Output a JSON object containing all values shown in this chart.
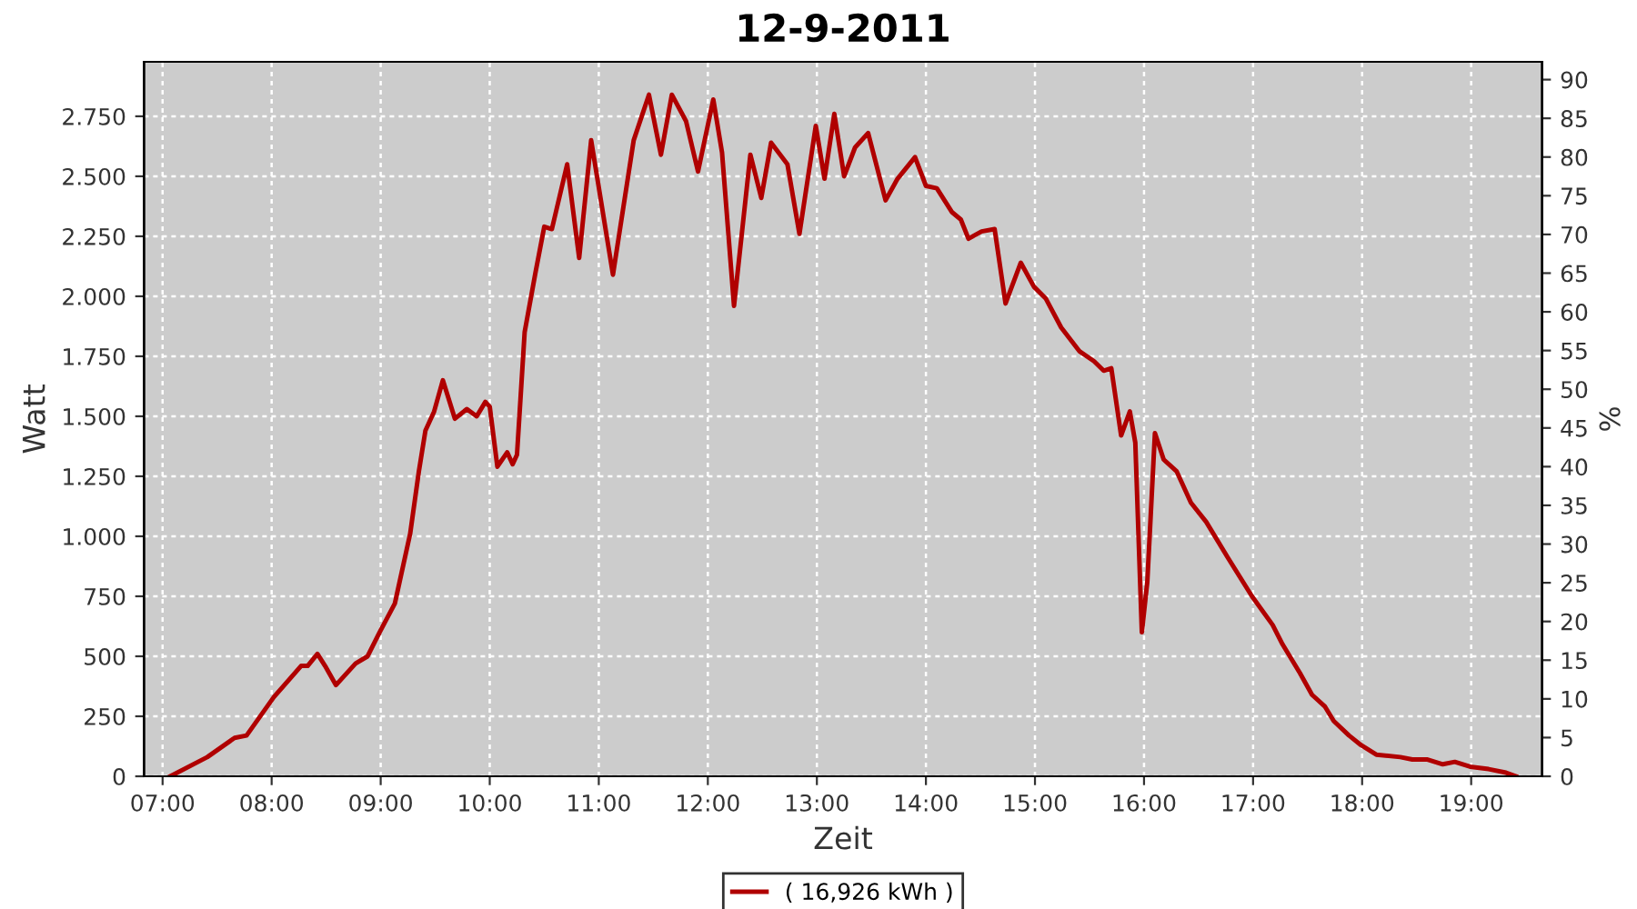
{
  "chart_data": {
    "type": "line",
    "title": "12-9-2011",
    "xlabel": "Zeit",
    "ylabel": "Watt",
    "y2label": "%",
    "series": [
      {
        "name": "( 16,926 kWh )",
        "color": "#b00000",
        "x": [
          7.07,
          7.41,
          7.66,
          7.77,
          8.02,
          8.27,
          8.33,
          8.42,
          8.49,
          8.59,
          8.77,
          8.88,
          8.99,
          9.13,
          9.27,
          9.35,
          9.41,
          9.49,
          9.57,
          9.68,
          9.79,
          9.88,
          9.96,
          10.0,
          10.07,
          10.16,
          10.21,
          10.25,
          10.32,
          10.42,
          10.5,
          10.57,
          10.71,
          10.82,
          10.93,
          11.13,
          11.32,
          11.46,
          11.57,
          11.67,
          11.8,
          11.91,
          12.05,
          12.13,
          12.24,
          12.39,
          12.49,
          12.58,
          12.73,
          12.84,
          12.99,
          13.07,
          13.16,
          13.25,
          13.35,
          13.47,
          13.63,
          13.74,
          13.9,
          14.0,
          14.1,
          14.24,
          14.32,
          14.39,
          14.51,
          14.63,
          14.73,
          14.87,
          14.99,
          15.1,
          15.24,
          15.41,
          15.54,
          15.63,
          15.7,
          15.79,
          15.87,
          15.92,
          15.98,
          16.03,
          16.1,
          16.18,
          16.3,
          16.43,
          16.57,
          16.77,
          16.99,
          17.18,
          17.27,
          17.43,
          17.54,
          17.66,
          17.74,
          17.88,
          17.99,
          18.13,
          18.35,
          18.46,
          18.6,
          18.74,
          18.85,
          18.99,
          19.16,
          19.32,
          19.41
        ],
        "values": [
          0,
          80,
          160,
          170,
          330,
          460,
          460,
          510,
          460,
          380,
          470,
          500,
          600,
          720,
          1010,
          1270,
          1440,
          1520,
          1650,
          1490,
          1530,
          1500,
          1560,
          1540,
          1290,
          1350,
          1300,
          1340,
          1850,
          2100,
          2290,
          2280,
          2550,
          2160,
          2650,
          2090,
          2650,
          2840,
          2590,
          2840,
          2730,
          2520,
          2820,
          2600,
          1960,
          2590,
          2410,
          2640,
          2550,
          2260,
          2710,
          2490,
          2760,
          2500,
          2620,
          2680,
          2400,
          2490,
          2580,
          2460,
          2450,
          2350,
          2320,
          2240,
          2270,
          2280,
          1970,
          2140,
          2040,
          1990,
          1870,
          1770,
          1730,
          1690,
          1700,
          1420,
          1520,
          1390,
          600,
          810,
          1430,
          1320,
          1270,
          1140,
          1060,
          910,
          750,
          630,
          550,
          430,
          340,
          290,
          230,
          170,
          130,
          90,
          80,
          70,
          70,
          50,
          60,
          40,
          30,
          15,
          0
        ]
      }
    ],
    "xlim": [
      6.83,
      19.65
    ],
    "xticks": [
      {
        "value": 7,
        "label": "07:00"
      },
      {
        "value": 8,
        "label": "08:00"
      },
      {
        "value": 9,
        "label": "09:00"
      },
      {
        "value": 10,
        "label": "10:00"
      },
      {
        "value": 11,
        "label": "11:00"
      },
      {
        "value": 12,
        "label": "12:00"
      },
      {
        "value": 13,
        "label": "13:00"
      },
      {
        "value": 14,
        "label": "14:00"
      },
      {
        "value": 15,
        "label": "15:00"
      },
      {
        "value": 16,
        "label": "16:00"
      },
      {
        "value": 17,
        "label": "17:00"
      },
      {
        "value": 18,
        "label": "18:00"
      },
      {
        "value": 19,
        "label": "19:00"
      }
    ],
    "ylim": [
      0,
      2977
    ],
    "yticks": [
      0,
      250,
      500,
      750,
      {
        "value": 1000,
        "label": "1.000"
      },
      {
        "value": 1250,
        "label": "1.250"
      },
      {
        "value": 1500,
        "label": "1.500"
      },
      {
        "value": 1750,
        "label": "1.750"
      },
      {
        "value": 2000,
        "label": "2.000"
      },
      {
        "value": 2250,
        "label": "2.250"
      },
      {
        "value": 2500,
        "label": "2.500"
      },
      {
        "value": 2750,
        "label": "2.750"
      }
    ],
    "y2lim": [
      0,
      92.3
    ],
    "y2ticks": [
      0,
      5,
      10,
      15,
      20,
      25,
      30,
      35,
      40,
      45,
      50,
      55,
      60,
      65,
      70,
      75,
      80,
      85,
      90
    ],
    "grid": true,
    "legend": "bottom",
    "line_style": "solid",
    "marker": "none"
  }
}
